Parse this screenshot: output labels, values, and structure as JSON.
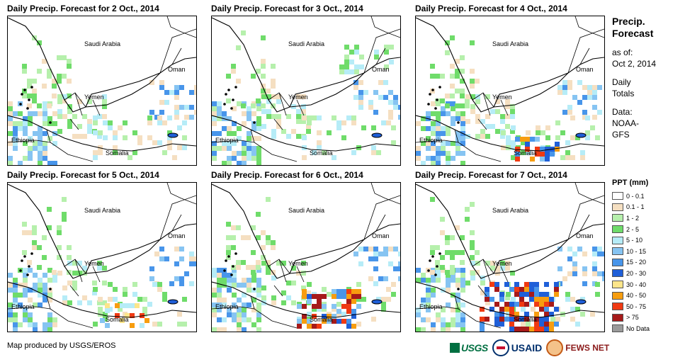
{
  "panels": [
    {
      "title": "Daily Precip. Forecast for 2 Oct., 2014",
      "scenario": 2
    },
    {
      "title": "Daily Precip. Forecast for 3 Oct., 2014",
      "scenario": 3
    },
    {
      "title": "Daily Precip. Forecast for 4 Oct., 2014",
      "scenario": 4
    },
    {
      "title": "Daily Precip. Forecast for 5 Oct., 2014",
      "scenario": 5
    },
    {
      "title": "Daily Precip. Forecast for 6 Oct., 2014",
      "scenario": 6
    },
    {
      "title": "Daily Precip. Forecast for 7 Oct., 2014",
      "scenario": 7
    }
  ],
  "map_labels": {
    "saudi_arabia": "Saudi Arabia",
    "oman": "Oman",
    "yemen": "Yemen",
    "ethiopia": "Ethiopia",
    "somalia": "Somalia"
  },
  "sidebar": {
    "title_line1": "Precip.",
    "title_line2": "Forecast",
    "as_of_line1": "as of:",
    "as_of_line2": "Oct 2, 2014",
    "totals_line1": "Daily",
    "totals_line2": "Totals",
    "data_line1": "Data:",
    "data_line2": "NOAA-",
    "data_line3": "GFS"
  },
  "legend": {
    "title": "PPT (mm)",
    "items": [
      {
        "label": "0 - 0.1",
        "color": "#ffffff"
      },
      {
        "label": "0.1 - 1",
        "color": "#f5dfc1"
      },
      {
        "label": "1 - 2",
        "color": "#b6f0ac"
      },
      {
        "label": "2 - 5",
        "color": "#6fdc6a"
      },
      {
        "label": "5 - 10",
        "color": "#b6ecf7"
      },
      {
        "label": "10 - 15",
        "color": "#86c4f2"
      },
      {
        "label": "15 - 20",
        "color": "#4895ea"
      },
      {
        "label": "20 - 30",
        "color": "#1f5fd8"
      },
      {
        "label": "30 - 40",
        "color": "#fce58a"
      },
      {
        "label": "40 - 50",
        "color": "#f79d0f"
      },
      {
        "label": "50 - 75",
        "color": "#f03a12"
      },
      {
        "label": "> 75",
        "color": "#a61a1a"
      },
      {
        "label": "No Data",
        "color": "#9a9a9a"
      }
    ]
  },
  "credit": "Map produced by USGS/EROS",
  "logos": {
    "usgs": "USGS",
    "usaid": "USAID",
    "fews": "FEWS NET"
  }
}
